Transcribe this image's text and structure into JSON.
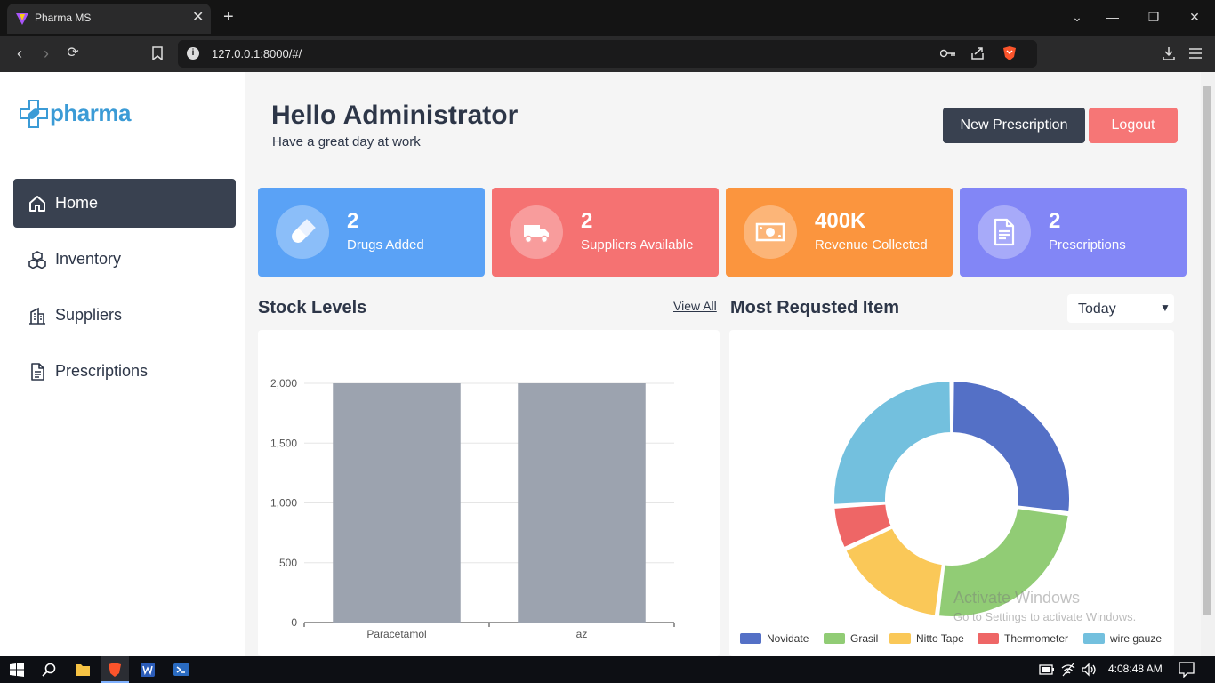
{
  "browser": {
    "tab_title": "Pharma MS",
    "url": "127.0.0.1:8000/#/"
  },
  "sidebar": {
    "logo_text": "pharma",
    "items": [
      {
        "label": "Home",
        "icon": "home-icon",
        "active": true
      },
      {
        "label": "Inventory",
        "icon": "cubes-icon",
        "active": false
      },
      {
        "label": "Suppliers",
        "icon": "building-icon",
        "active": false
      },
      {
        "label": "Prescriptions",
        "icon": "file-icon",
        "active": false
      }
    ]
  },
  "header": {
    "greeting": "Hello Administrator",
    "subtitle": "Have a great day at work",
    "new_prescription_label": "New Prescription",
    "logout_label": "Logout"
  },
  "colors": {
    "dark": "#394150",
    "logout": "#f67676",
    "card_drugs": "#5aa2f6",
    "card_suppliers": "#f57272",
    "card_revenue": "#fb953e",
    "card_prescriptions": "#8286f6"
  },
  "cards": [
    {
      "value": "2",
      "caption": "Drugs Added",
      "icon": "pill-icon"
    },
    {
      "value": "2",
      "caption": "Suppliers Available",
      "icon": "truck-icon"
    },
    {
      "value": "400K",
      "caption": "Revenue Collected",
      "icon": "money-icon"
    },
    {
      "value": "2",
      "caption": "Prescriptions",
      "icon": "document-icon"
    }
  ],
  "stock": {
    "title": "Stock Levels",
    "view_all": "View All"
  },
  "requested": {
    "title": "Most Requsted Item",
    "period": "Today"
  },
  "chart_data": [
    {
      "type": "bar",
      "categories": [
        "Paracetamol",
        "az"
      ],
      "values": [
        2000,
        2000
      ],
      "ylim": [
        0,
        2200
      ],
      "yticks": [
        "0",
        "500",
        "1,000",
        "1,500",
        "2,000"
      ],
      "ytick_values": [
        0,
        500,
        1000,
        1500,
        2000
      ],
      "grid": true,
      "bar_color": "#9ca3af"
    },
    {
      "type": "pie",
      "categories": [
        "Novidate",
        "Grasil",
        "Nitto Tape",
        "Thermometer",
        "wire gauze"
      ],
      "values": [
        27,
        25,
        16,
        6,
        26
      ],
      "colors": [
        "#5470c6",
        "#91cc75",
        "#fac858",
        "#ee6666",
        "#73c0de"
      ],
      "legend": "bottom"
    }
  ],
  "watermark": {
    "line1": "Activate Windows",
    "line2": "Go to Settings to activate Windows."
  },
  "taskbar": {
    "time": "4:08:48 AM"
  }
}
